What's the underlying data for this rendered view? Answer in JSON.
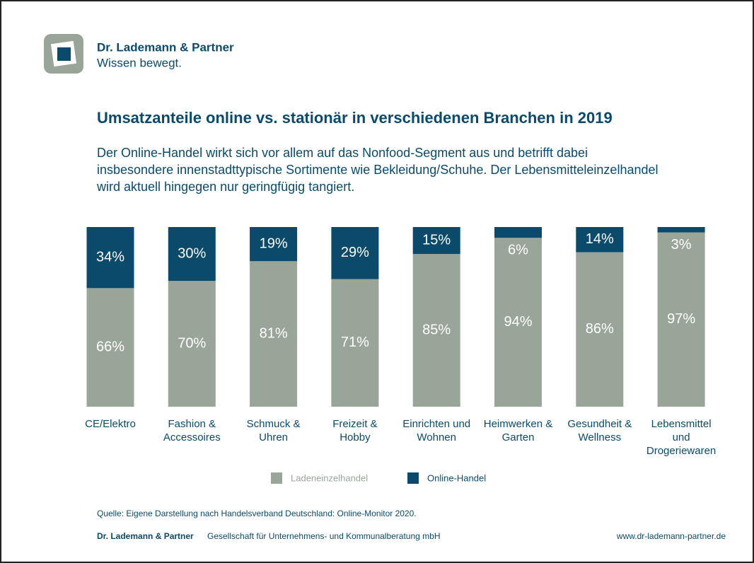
{
  "logo": {
    "name": "Dr. Lademann & Partner",
    "tagline": "Wissen bewegt."
  },
  "chart_data": {
    "type": "stacked_bar",
    "title": "Umsatzanteile online vs. stationär in verschiedenen Branchen in 2019",
    "subtitle": "Der Online-Handel wirkt sich vor allem auf das Nonfood-Segment aus und betrifft dabei\ninsbesondere innenstadttypische Sortimente wie Bekleidung/Schuhe. Der Lebensmitteleinzelhandel\nwird aktuell hingegen nur geringfügig tangiert.",
    "categories": [
      "CE/Elektro",
      "Fashion &\nAccessoires",
      "Schmuck &\nUhren",
      "Freizeit &\nHobby",
      "Einrichten und\nWohnen",
      "Heimwerken &\nGarten",
      "Gesundheit &\nWellness",
      "Lebensmittel\nund\nDrogeriewaren"
    ],
    "series": [
      {
        "name": "Ladeneinzelhandel",
        "color": "#9aa59a",
        "values": [
          66,
          70,
          81,
          71,
          85,
          94,
          86,
          97
        ],
        "value_labels": [
          "66%",
          "70%",
          "81%",
          "71%",
          "85%",
          "94%",
          "86%",
          "97%"
        ]
      },
      {
        "name": "Online-Handel",
        "color": "#0b4a6b",
        "values": [
          34,
          30,
          19,
          29,
          15,
          6,
          14,
          3
        ],
        "value_labels": [
          "34%",
          "30%",
          "19%",
          "29%",
          "15%",
          "6%",
          "14%",
          "3%"
        ]
      }
    ],
    "ylim": [
      0,
      100
    ],
    "source": "Quelle: Eigene Darstellung nach Handelsverband Deutschland: Online-Monitor 2020."
  },
  "footer": {
    "company": "Dr. Lademann & Partner",
    "company_suffix": "Gesellschaft für Unternehmens- und Kommunalberatung mbH",
    "url": "www.dr-lademann-partner.de"
  }
}
